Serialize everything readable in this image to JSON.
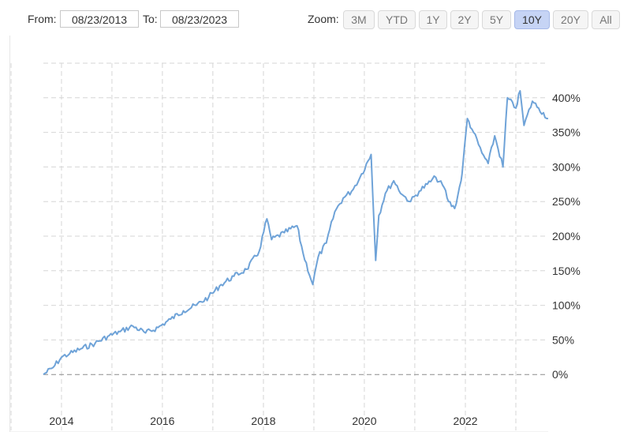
{
  "range": {
    "from_label": "From:",
    "from_value": "08/23/2013",
    "to_label": "To:",
    "to_value": "08/23/2023"
  },
  "zoom": {
    "label": "Zoom:",
    "buttons": [
      "3M",
      "YTD",
      "1Y",
      "2Y",
      "5Y",
      "10Y",
      "20Y",
      "All"
    ],
    "active": "10Y"
  },
  "colors": {
    "line": "#6fa3d8",
    "grid": "#d6d6d6",
    "active_button": "#c6d4f5"
  },
  "chart_data": {
    "type": "line",
    "title": "",
    "xlabel": "",
    "ylabel": "",
    "x_ticks": [
      "2014",
      "2016",
      "2018",
      "2020",
      "2022"
    ],
    "y_ticks": [
      "0%",
      "50%",
      "100%",
      "150%",
      "200%",
      "250%",
      "300%",
      "350%",
      "400%"
    ],
    "xlim": [
      "2013-08-23",
      "2023-08-23"
    ],
    "ylim": [
      -50,
      450
    ],
    "grid": true,
    "legend": "none",
    "series": [
      {
        "x": [
          "2013-08-23",
          "2013-11-01",
          "2014-01-01",
          "2014-03-01",
          "2014-06-01",
          "2014-09-01",
          "2014-12-01",
          "2015-03-01",
          "2015-06-01",
          "2015-09-01",
          "2015-12-01",
          "2016-03-01",
          "2016-06-01",
          "2016-09-01",
          "2016-12-01",
          "2017-03-01",
          "2017-06-01",
          "2017-09-01",
          "2017-12-01",
          "2018-01-26",
          "2018-03-01",
          "2018-06-01",
          "2018-09-01",
          "2018-10-15",
          "2018-12-24",
          "2019-02-01",
          "2019-04-01",
          "2019-06-01",
          "2019-08-01",
          "2019-10-01",
          "2019-12-01",
          "2020-02-19",
          "2020-03-23",
          "2020-04-15",
          "2020-06-01",
          "2020-08-01",
          "2020-10-01",
          "2020-12-01",
          "2021-02-01",
          "2021-04-01",
          "2021-06-01",
          "2021-08-01",
          "2021-09-01",
          "2021-10-15",
          "2021-12-01",
          "2021-12-15",
          "2022-01-15",
          "2022-03-01",
          "2022-05-01",
          "2022-06-15",
          "2022-08-01",
          "2022-09-30",
          "2022-11-01",
          "2023-01-01",
          "2023-02-01",
          "2023-03-01",
          "2023-05-01",
          "2023-06-15",
          "2023-08-23"
        ],
        "values": [
          0,
          10,
          25,
          30,
          38,
          45,
          55,
          62,
          70,
          60,
          68,
          80,
          92,
          100,
          112,
          130,
          142,
          152,
          178,
          225,
          195,
          205,
          215,
          175,
          130,
          170,
          190,
          235,
          255,
          265,
          285,
          318,
          165,
          230,
          262,
          280,
          260,
          250,
          265,
          275,
          285,
          270,
          250,
          240,
          280,
          305,
          370,
          350,
          320,
          305,
          345,
          300,
          400,
          385,
          410,
          360,
          395,
          385,
          370
        ]
      }
    ]
  }
}
